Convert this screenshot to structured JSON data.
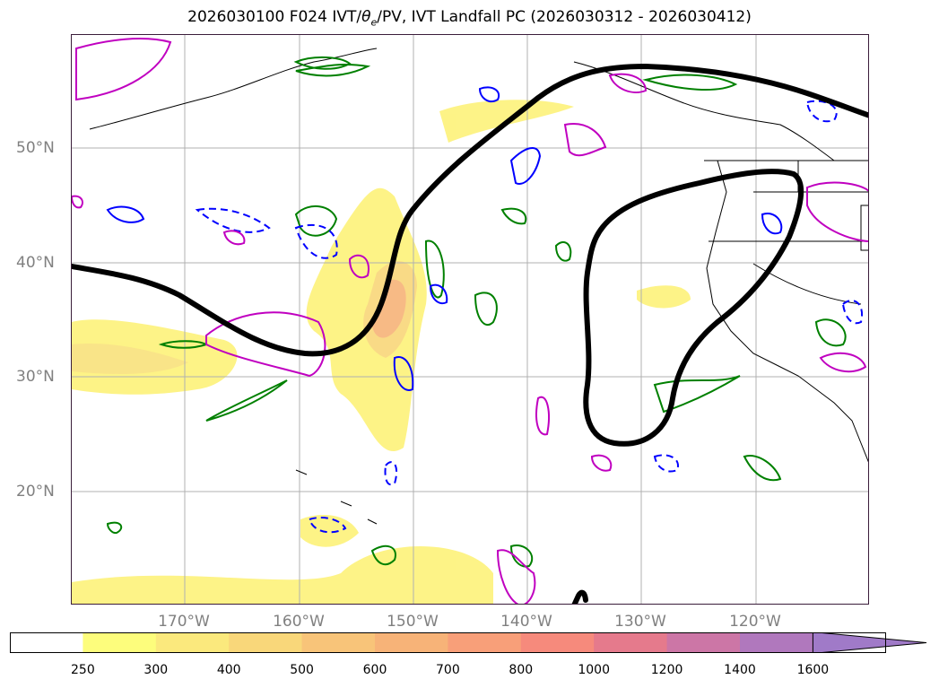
{
  "title": "2026030100 F024 IVT/θe/PV, IVT Landfall PC (2026030312 - 2026030412)",
  "title_parts": {
    "prefix": "2026030100 F024 IVT/",
    "theta": "θ",
    "sub": "e",
    "suffix": "/PV, IVT Landfall PC (2026030312 - 2026030412)"
  },
  "lat_labels": [
    "50°N",
    "40°N",
    "30°N",
    "20°N"
  ],
  "lon_labels": [
    "170°W",
    "160°W",
    "150°W",
    "140°W",
    "130°W",
    "120°W"
  ],
  "colorbar": {
    "ticks": [
      "250",
      "300",
      "400",
      "500",
      "600",
      "700",
      "800",
      "1000",
      "1200",
      "1400",
      "1600"
    ],
    "colors": [
      "#ffffff",
      "#fdfd7c",
      "#fbe97d",
      "#f9d77a",
      "#f8c479",
      "#f7b378",
      "#f89f79",
      "#f68a7c",
      "#e57a8c",
      "#cc76a6",
      "#b078bd",
      "#a07ac8"
    ],
    "extend": "max"
  },
  "legend_colors": {
    "ivt_fill": "#fdf27a",
    "theta_e": "#008000",
    "pv_positive": "#0000ff",
    "pv_negative": "#c000c0",
    "landfall_pc": "#000000"
  }
}
